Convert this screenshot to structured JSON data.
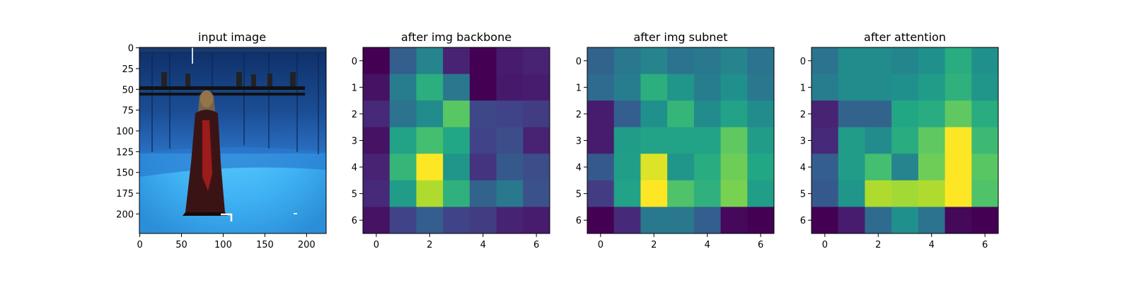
{
  "chart_data": [
    {
      "type": "image",
      "title": "input image",
      "xticks": [
        0,
        50,
        100,
        150,
        200
      ],
      "yticks": [
        0,
        25,
        50,
        75,
        100,
        125,
        150,
        175,
        200
      ],
      "xlim": [
        -0.5,
        223.5
      ],
      "ylim": [
        223.5,
        -0.5
      ]
    },
    {
      "type": "heatmap",
      "title": "after img backbone",
      "colormap": "viridis",
      "xticks": [
        0,
        2,
        4,
        6
      ],
      "yticks": [
        0,
        1,
        2,
        3,
        4,
        5,
        6
      ],
      "values": [
        [
          0.0,
          0.3,
          0.45,
          0.1,
          0.0,
          0.08,
          0.1
        ],
        [
          0.05,
          0.42,
          0.63,
          0.4,
          0.0,
          0.07,
          0.08
        ],
        [
          0.12,
          0.38,
          0.48,
          0.74,
          0.22,
          0.2,
          0.18
        ],
        [
          0.05,
          0.58,
          0.7,
          0.6,
          0.2,
          0.24,
          0.1
        ],
        [
          0.1,
          0.66,
          1.0,
          0.52,
          0.15,
          0.28,
          0.24
        ],
        [
          0.12,
          0.55,
          0.88,
          0.64,
          0.32,
          0.4,
          0.25
        ],
        [
          0.05,
          0.2,
          0.3,
          0.2,
          0.18,
          0.1,
          0.08
        ]
      ]
    },
    {
      "type": "heatmap",
      "title": "after img subnet",
      "colormap": "viridis",
      "xticks": [
        0,
        2,
        4,
        6
      ],
      "yticks": [
        0,
        1,
        2,
        3,
        4,
        5,
        6
      ],
      "values": [
        [
          0.32,
          0.4,
          0.45,
          0.38,
          0.4,
          0.45,
          0.38
        ],
        [
          0.35,
          0.42,
          0.63,
          0.52,
          0.42,
          0.5,
          0.4
        ],
        [
          0.08,
          0.3,
          0.5,
          0.66,
          0.48,
          0.58,
          0.48
        ],
        [
          0.08,
          0.55,
          0.58,
          0.58,
          0.58,
          0.75,
          0.55
        ],
        [
          0.28,
          0.56,
          0.95,
          0.52,
          0.62,
          0.78,
          0.6
        ],
        [
          0.18,
          0.58,
          1.0,
          0.72,
          0.64,
          0.8,
          0.56
        ],
        [
          0.0,
          0.12,
          0.4,
          0.4,
          0.3,
          0.02,
          0.0
        ]
      ]
    },
    {
      "type": "heatmap",
      "title": "after attention",
      "colormap": "viridis",
      "xticks": [
        0,
        2,
        4,
        6
      ],
      "yticks": [
        0,
        1,
        2,
        3,
        4,
        5,
        6
      ],
      "values": [
        [
          0.38,
          0.48,
          0.48,
          0.46,
          0.5,
          0.62,
          0.5
        ],
        [
          0.42,
          0.48,
          0.48,
          0.5,
          0.55,
          0.64,
          0.52
        ],
        [
          0.1,
          0.32,
          0.32,
          0.6,
          0.62,
          0.75,
          0.62
        ],
        [
          0.12,
          0.55,
          0.48,
          0.62,
          0.75,
          1.0,
          0.68
        ],
        [
          0.3,
          0.55,
          0.7,
          0.45,
          0.78,
          1.0,
          0.74
        ],
        [
          0.28,
          0.52,
          0.88,
          0.86,
          0.88,
          1.0,
          0.72
        ],
        [
          0.0,
          0.08,
          0.35,
          0.5,
          0.38,
          0.02,
          0.0
        ]
      ]
    }
  ]
}
